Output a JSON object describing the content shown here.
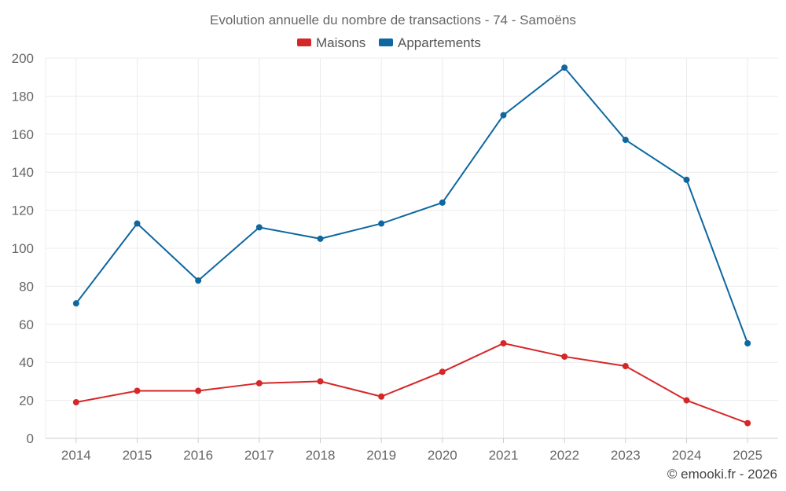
{
  "chart_data": {
    "type": "line",
    "title": "Evolution annuelle du nombre de transactions - 74 - Samoëns",
    "categories": [
      "2014",
      "2015",
      "2016",
      "2017",
      "2018",
      "2019",
      "2020",
      "2021",
      "2022",
      "2023",
      "2024",
      "2025"
    ],
    "series": [
      {
        "name": "Maisons",
        "color": "#d62728",
        "values": [
          19,
          25,
          25,
          29,
          30,
          22,
          35,
          50,
          43,
          38,
          20,
          8
        ]
      },
      {
        "name": "Appartements",
        "color": "#0e67a0",
        "values": [
          71,
          113,
          83,
          111,
          105,
          113,
          124,
          170,
          195,
          157,
          136,
          50
        ]
      }
    ],
    "ylim": [
      0,
      200
    ],
    "yticks": [
      0,
      20,
      40,
      60,
      80,
      100,
      120,
      140,
      160,
      180,
      200
    ],
    "xlabel": "",
    "ylabel": "",
    "grid": true,
    "legend": "top-center"
  },
  "credit": "© emooki.fr - 2026"
}
